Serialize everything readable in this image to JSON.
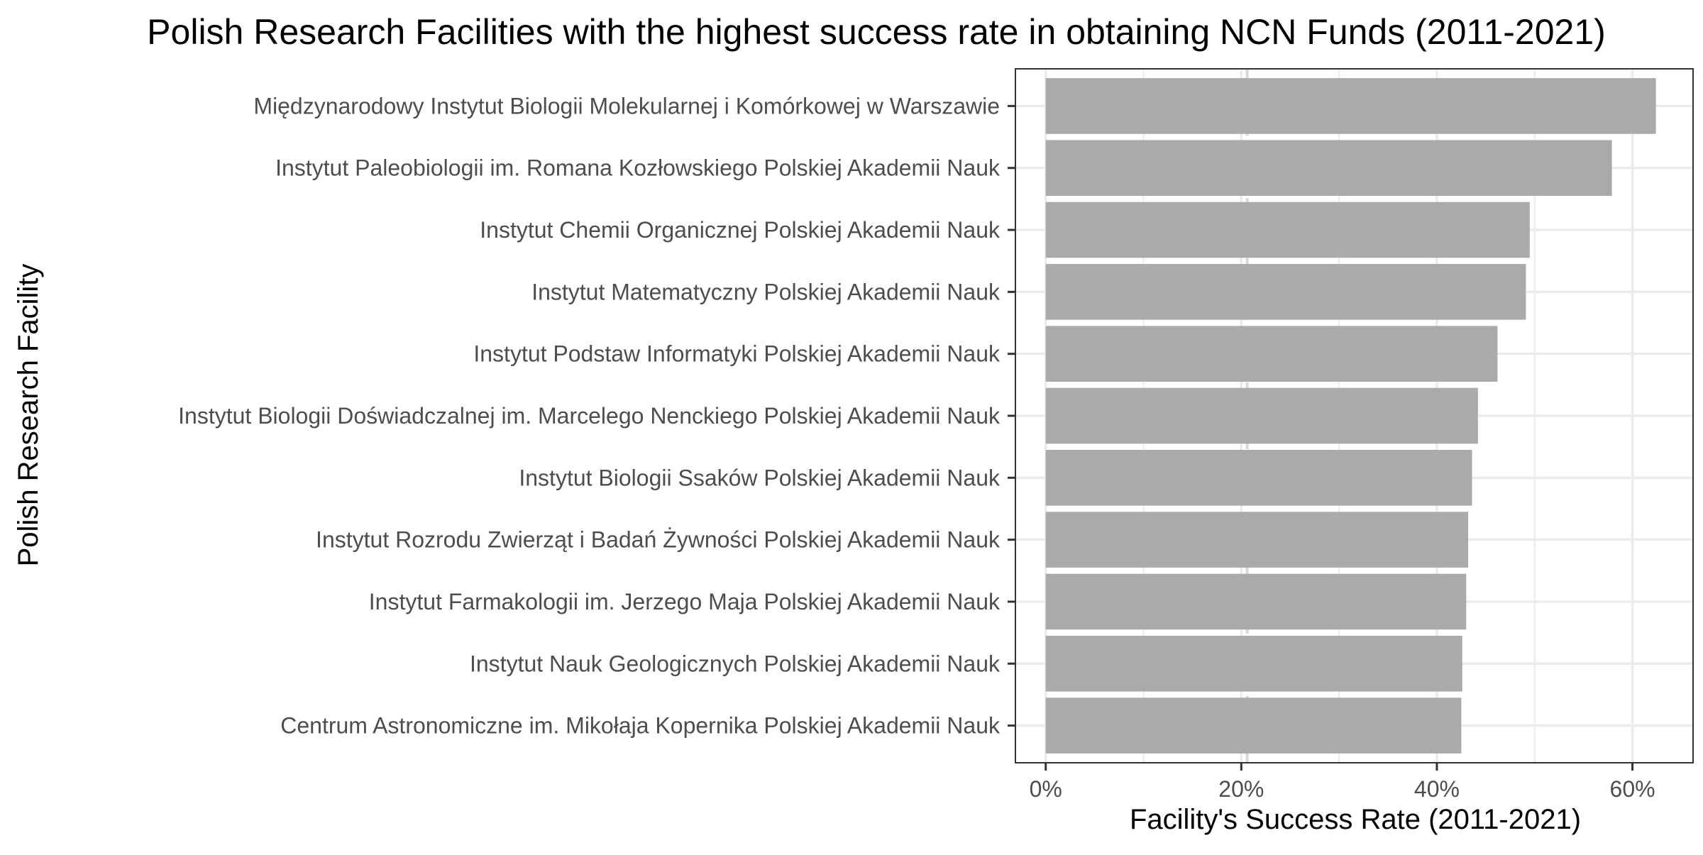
{
  "chart_data": {
    "type": "bar",
    "orientation": "horizontal",
    "title": "Polish Research Facilities with the highest success rate in obtaining NCN Funds (2011-2021)",
    "xlabel": "Facility's Success Rate (2011-2021)",
    "ylabel": "Polish Research Facility",
    "categories": [
      "Międzynarodowy Instytut Biologii Molekularnej i Komórkowej w Warszawie",
      "Instytut Paleobiologii im. Romana Kozłowskiego Polskiej Akademii Nauk",
      "Instytut Chemii Organicznej Polskiej Akademii Nauk",
      "Instytut Matematyczny Polskiej Akademii Nauk",
      "Instytut Podstaw Informatyki Polskiej Akademii Nauk",
      "Instytut Biologii Doświadczalnej im. Marcelego Nenckiego Polskiej Akademii Nauk",
      "Instytut Biologii Ssaków Polskiej Akademii Nauk",
      "Instytut Rozrodu Zwierząt i Badań Żywności Polskiej Akademii Nauk",
      "Instytut Farmakologii im. Jerzego Maja Polskiej Akademii Nauk",
      "Instytut Nauk Geologicznych Polskiej Akademii Nauk",
      "Centrum Astronomiczne im. Mikołaja Kopernika Polskiej Akademii Nauk"
    ],
    "values": [
      0.624,
      0.579,
      0.495,
      0.491,
      0.462,
      0.442,
      0.436,
      0.432,
      0.43,
      0.426,
      0.425
    ],
    "xlim": [
      -0.031,
      0.662
    ],
    "x_ticks": [
      0,
      0.2,
      0.4,
      0.6
    ],
    "x_tick_labels": [
      "0%",
      "20%",
      "40%",
      "60%"
    ],
    "reference_line": 0.206,
    "grid": true,
    "bar_color": "#aaaaaa",
    "reference_line_color": "#d9d9d9",
    "grid_color": "#ebebeb",
    "panel_border_color": "#333333"
  }
}
